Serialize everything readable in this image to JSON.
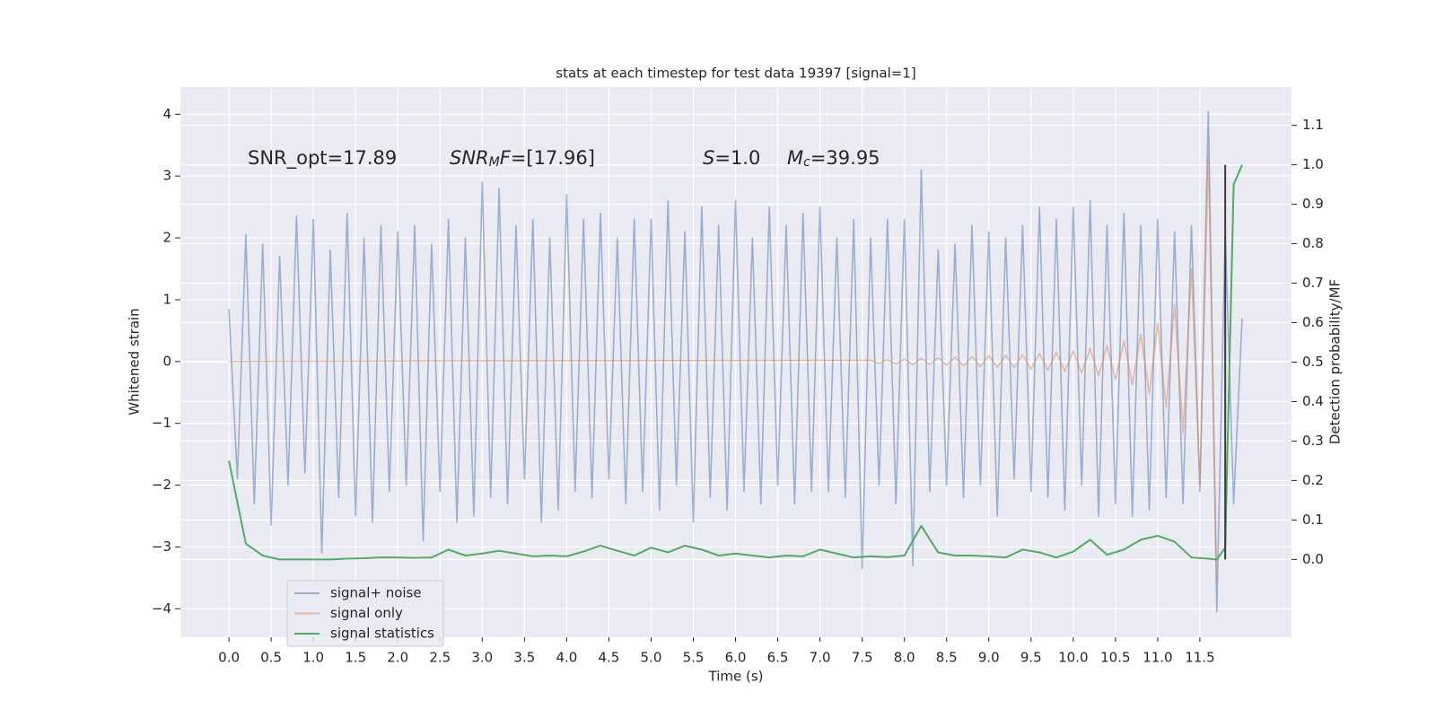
{
  "chart_data": {
    "type": "line",
    "title": "stats at each timestep for test data 19397 [signal=1]",
    "xlabel": "Time (s)",
    "ylabel": "Whitened strain",
    "y2label": "Detection probability/MF",
    "xlim": [
      -0.575,
      12.585
    ],
    "ylim": [
      -4.46,
      4.44
    ],
    "y2lim": [
      -0.197,
      1.197
    ],
    "xticks": [
      {
        "value": 0,
        "label": "0.0"
      },
      {
        "value": 0.5,
        "label": "0.5"
      },
      {
        "value": 1,
        "label": "1.0"
      },
      {
        "value": 1.5,
        "label": "1.5"
      },
      {
        "value": 2,
        "label": "2.0"
      },
      {
        "value": 2.5,
        "label": "2.5"
      },
      {
        "value": 3,
        "label": "3.0"
      },
      {
        "value": 3.5,
        "label": "3.5"
      },
      {
        "value": 4,
        "label": "4.0"
      },
      {
        "value": 4.5,
        "label": "4.5"
      },
      {
        "value": 5,
        "label": "5.0"
      },
      {
        "value": 5.5,
        "label": "5.5"
      },
      {
        "value": 6,
        "label": "6.0"
      },
      {
        "value": 6.5,
        "label": "6.5"
      },
      {
        "value": 7,
        "label": "7.0"
      },
      {
        "value": 7.5,
        "label": "7.5"
      },
      {
        "value": 8,
        "label": "8.0"
      },
      {
        "value": 8.5,
        "label": "8.5"
      },
      {
        "value": 9,
        "label": "9.0"
      },
      {
        "value": 9.5,
        "label": "9.5"
      },
      {
        "value": 10,
        "label": "10.0"
      },
      {
        "value": 10.5,
        "label": "10.5"
      },
      {
        "value": 11,
        "label": "11.0"
      },
      {
        "value": 11.5,
        "label": "11.5"
      }
    ],
    "yticks": [
      {
        "value": -4,
        "label": "−4"
      },
      {
        "value": -3,
        "label": "−3"
      },
      {
        "value": -2,
        "label": "−2"
      },
      {
        "value": -1,
        "label": "−1"
      },
      0,
      1,
      2,
      3,
      4
    ],
    "y2ticks": [
      {
        "value": 0,
        "label": "0.0"
      },
      {
        "value": 0.1,
        "label": "0.1"
      },
      {
        "value": 0.2,
        "label": "0.2"
      },
      {
        "value": 0.3,
        "label": "0.3"
      },
      {
        "value": 0.4,
        "label": "0.4"
      },
      {
        "value": 0.5,
        "label": "0.5"
      },
      {
        "value": 0.6,
        "label": "0.6"
      },
      {
        "value": 0.7,
        "label": "0.7"
      },
      {
        "value": 0.8,
        "label": "0.8"
      },
      {
        "value": 0.9,
        "label": "0.9"
      },
      {
        "value": 1,
        "label": "1.0"
      },
      {
        "value": 1.1,
        "label": "1.1"
      }
    ],
    "grid": true,
    "legend": "lower left",
    "annotations": [
      [
        {
          "text": "SNR_opt=17.89"
        }
      ],
      [
        {
          "text": "SNR",
          "italic": true
        },
        {
          "text": "M",
          "italic": true,
          "sub": true
        },
        {
          "text": "F",
          "italic": true
        },
        {
          "text": "=[17.96]"
        }
      ],
      [
        {
          "text": "S",
          "italic": true
        },
        {
          "text": "=1.0"
        }
      ],
      [
        {
          "text": "M",
          "italic": true
        },
        {
          "text": "c",
          "italic": true,
          "sub": true
        },
        {
          "text": "=39.95"
        }
      ]
    ],
    "vline": {
      "x": 11.8,
      "y2range": [
        0,
        1
      ],
      "color": "#3a3a3a"
    },
    "series": [
      {
        "name": "signal+ noise",
        "color": "#4c72b0",
        "opacity": 0.5,
        "x": [
          0.0,
          0.1,
          0.2,
          0.3,
          0.4,
          0.5,
          0.6,
          0.7,
          0.8,
          0.9,
          1.0,
          1.1,
          1.2,
          1.3,
          1.4,
          1.5,
          1.6,
          1.7,
          1.8,
          1.9,
          2.0,
          2.1,
          2.2,
          2.3,
          2.4,
          2.5,
          2.6,
          2.7,
          2.8,
          2.9,
          3.0,
          3.1,
          3.2,
          3.3,
          3.4,
          3.5,
          3.6,
          3.7,
          3.8,
          3.9,
          4.0,
          4.1,
          4.2,
          4.3,
          4.4,
          4.5,
          4.6,
          4.7,
          4.8,
          4.9,
          5.0,
          5.1,
          5.2,
          5.3,
          5.4,
          5.5,
          5.6,
          5.7,
          5.8,
          5.9,
          6.0,
          6.1,
          6.2,
          6.3,
          6.4,
          6.5,
          6.6,
          6.7,
          6.8,
          6.9,
          7.0,
          7.1,
          7.2,
          7.3,
          7.4,
          7.5,
          7.6,
          7.7,
          7.8,
          7.9,
          8.0,
          8.1,
          8.2,
          8.3,
          8.4,
          8.5,
          8.6,
          8.7,
          8.8,
          8.9,
          9.0,
          9.1,
          9.2,
          9.3,
          9.4,
          9.5,
          9.6,
          9.7,
          9.8,
          9.9,
          10.0,
          10.1,
          10.2,
          10.3,
          10.4,
          10.5,
          10.6,
          10.7,
          10.8,
          10.9,
          11.0,
          11.1,
          11.2,
          11.3,
          11.4,
          11.5,
          11.6,
          11.7,
          11.8,
          11.9,
          12.0
        ],
        "values": [
          0.85,
          -1.9,
          2.05,
          -2.3,
          1.9,
          -2.65,
          1.7,
          -2.0,
          2.35,
          -1.8,
          2.3,
          -3.1,
          1.8,
          -2.2,
          2.4,
          -2.5,
          2.0,
          -2.6,
          2.2,
          -2.1,
          2.1,
          -2.0,
          2.2,
          -2.9,
          1.9,
          -2.1,
          2.3,
          -2.6,
          2.0,
          -2.5,
          2.9,
          -2.2,
          2.8,
          -2.3,
          2.2,
          -1.9,
          2.3,
          -2.6,
          2.0,
          -2.4,
          2.7,
          -2.1,
          2.3,
          -2.2,
          2.4,
          -1.9,
          2.0,
          -2.3,
          2.3,
          -2.1,
          2.3,
          -2.4,
          2.6,
          -2.0,
          2.1,
          -2.6,
          2.5,
          -2.2,
          2.2,
          -2.4,
          2.6,
          -2.1,
          2.0,
          -2.3,
          2.5,
          -2.0,
          2.2,
          -2.3,
          2.4,
          -2.1,
          2.5,
          -2.1,
          2.0,
          -2.2,
          2.3,
          -3.35,
          2.0,
          -2.0,
          2.3,
          -2.3,
          2.3,
          -3.3,
          3.1,
          -2.1,
          1.8,
          -2.0,
          1.9,
          -2.2,
          2.2,
          -2.0,
          2.1,
          -2.5,
          2.0,
          -1.9,
          2.2,
          -2.1,
          2.5,
          -2.2,
          2.3,
          -2.4,
          2.5,
          -2.0,
          2.6,
          -2.5,
          2.2,
          -2.3,
          2.4,
          -2.5,
          2.2,
          -2.4,
          2.3,
          -2.2,
          2.1,
          -2.3,
          2.2,
          -2.1,
          4.05,
          -4.05,
          2.1,
          -2.3,
          0.7
        ]
      },
      {
        "name": "signal only",
        "color": "#dd8452",
        "opacity": 0.5,
        "x": [
          0.0,
          7.6,
          7.7,
          7.8,
          7.9,
          8.0,
          8.1,
          8.2,
          8.3,
          8.4,
          8.5,
          8.6,
          8.7,
          8.8,
          8.9,
          9.0,
          9.1,
          9.2,
          9.3,
          9.4,
          9.5,
          9.6,
          9.7,
          9.8,
          9.9,
          10.0,
          10.1,
          10.2,
          10.3,
          10.4,
          10.5,
          10.6,
          10.7,
          10.8,
          10.9,
          11.0,
          11.1,
          11.2,
          11.3,
          11.4,
          11.5,
          11.6,
          11.7
        ],
        "values": [
          0,
          0.02,
          -0.03,
          0.03,
          -0.04,
          0.04,
          -0.05,
          0.05,
          -0.05,
          0.06,
          -0.06,
          0.07,
          -0.07,
          0.08,
          -0.08,
          0.09,
          -0.09,
          0.1,
          -0.1,
          0.11,
          -0.12,
          0.13,
          -0.14,
          0.15,
          -0.16,
          0.17,
          -0.19,
          0.21,
          -0.23,
          0.26,
          -0.29,
          0.33,
          -0.38,
          0.44,
          -0.52,
          0.62,
          -0.75,
          0.92,
          -1.15,
          1.5,
          -2.0,
          3.35,
          -3.55
        ]
      },
      {
        "name": "signal statistics",
        "color": "#55a868",
        "opacity": 1,
        "axis": "y2",
        "x": [
          0.0,
          0.2,
          0.4,
          0.6,
          0.8,
          1.0,
          1.2,
          1.4,
          1.6,
          1.8,
          2.0,
          2.2,
          2.4,
          2.6,
          2.8,
          3.0,
          3.2,
          3.4,
          3.6,
          3.8,
          4.0,
          4.2,
          4.4,
          4.6,
          4.8,
          5.0,
          5.2,
          5.4,
          5.6,
          5.8,
          6.0,
          6.2,
          6.4,
          6.6,
          6.8,
          7.0,
          7.2,
          7.4,
          7.6,
          7.8,
          8.0,
          8.2,
          8.4,
          8.6,
          8.8,
          9.0,
          9.2,
          9.4,
          9.6,
          9.8,
          10.0,
          10.2,
          10.4,
          10.6,
          10.8,
          11.0,
          11.2,
          11.4,
          11.6,
          11.7,
          11.8,
          11.9,
          12.0
        ],
        "values": [
          0.25,
          0.04,
          0.01,
          0.0,
          0.0,
          0.0,
          0.0,
          0.002,
          0.003,
          0.005,
          0.005,
          0.004,
          0.005,
          0.025,
          0.01,
          0.015,
          0.022,
          0.015,
          0.008,
          0.01,
          0.008,
          0.02,
          0.035,
          0.022,
          0.01,
          0.03,
          0.018,
          0.035,
          0.025,
          0.01,
          0.015,
          0.01,
          0.005,
          0.01,
          0.008,
          0.025,
          0.015,
          0.005,
          0.008,
          0.006,
          0.01,
          0.085,
          0.018,
          0.01,
          0.01,
          0.008,
          0.005,
          0.025,
          0.018,
          0.005,
          0.02,
          0.05,
          0.012,
          0.025,
          0.05,
          0.06,
          0.045,
          0.005,
          0.002,
          0.0,
          0.03,
          0.95,
          1.0
        ]
      }
    ]
  }
}
